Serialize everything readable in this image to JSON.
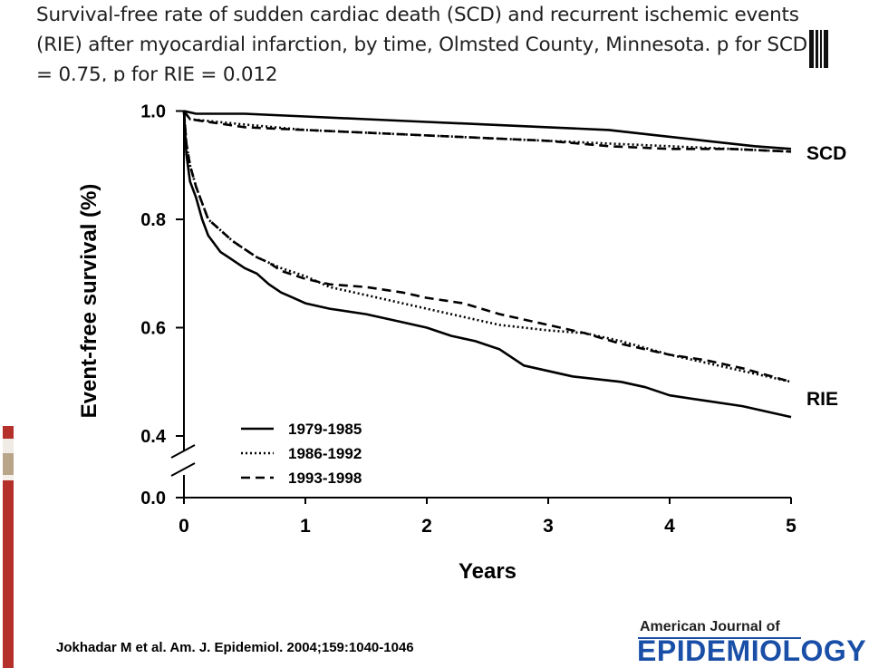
{
  "slide": {
    "title": "Survival-free rate of sudden cardiac death (SCD) and recurrent ischemic events (RIE) after myocardial infarction, by time, Olmsted County, Minnesota. p for SCD = 0.75, p for RIE = 0.012",
    "citation": "Jokhadar M et al. Am. J. Epidemiol. 2004;159:1040-1046",
    "journal_top": "American Journal of",
    "journal_bottom": "EPIDEMIOLOGY",
    "colors": {
      "journal_blue": "#1a4fa8",
      "strip_red": "#b5302a",
      "strip_tan": "#b8a58a"
    }
  },
  "chart_data": {
    "type": "line",
    "xlabel": "Years",
    "ylabel": "Event-free survival  (%)",
    "xlim": [
      0,
      5
    ],
    "ylim": [
      0.0,
      1.0
    ],
    "axis_break": "between 0.0 and 0.4",
    "xticks": [
      "0",
      "1",
      "2",
      "3",
      "4",
      "5"
    ],
    "yticks": [
      "0.0",
      "0.4",
      "0.6",
      "0.8",
      "1.0"
    ],
    "legend_position": "lower-left",
    "annotations": [
      "SCD",
      "RIE"
    ],
    "series": [
      {
        "name": "1979-1985",
        "group": "SCD",
        "dash": "solid",
        "x": [
          0,
          0.1,
          0.5,
          1.0,
          1.5,
          2.0,
          2.5,
          3.0,
          3.5,
          3.9,
          4.3,
          4.7,
          5.0
        ],
        "y": [
          1.0,
          0.995,
          0.995,
          0.99,
          0.985,
          0.98,
          0.975,
          0.97,
          0.965,
          0.955,
          0.945,
          0.935,
          0.93
        ]
      },
      {
        "name": "1986-1992",
        "group": "SCD",
        "dash": "dotted",
        "x": [
          0,
          0.05,
          0.5,
          1.0,
          1.5,
          2.0,
          2.5,
          3.0,
          3.5,
          4.0,
          4.5,
          5.0
        ],
        "y": [
          1.0,
          0.985,
          0.975,
          0.965,
          0.96,
          0.955,
          0.95,
          0.945,
          0.94,
          0.935,
          0.93,
          0.925
        ]
      },
      {
        "name": "1993-1998",
        "group": "SCD",
        "dash": "dashed",
        "x": [
          0,
          0.05,
          0.5,
          1.0,
          1.5,
          2.0,
          2.5,
          3.0,
          3.5,
          4.0,
          4.5,
          5.0
        ],
        "y": [
          1.0,
          0.985,
          0.97,
          0.965,
          0.96,
          0.955,
          0.95,
          0.945,
          0.935,
          0.93,
          0.93,
          0.925
        ]
      },
      {
        "name": "1979-1985",
        "group": "RIE",
        "dash": "solid",
        "x": [
          0,
          0.02,
          0.05,
          0.1,
          0.15,
          0.2,
          0.3,
          0.4,
          0.5,
          0.6,
          0.7,
          0.8,
          0.9,
          1.0,
          1.2,
          1.5,
          1.8,
          2.0,
          2.2,
          2.4,
          2.6,
          2.8,
          3.0,
          3.2,
          3.4,
          3.6,
          3.8,
          4.0,
          4.3,
          4.6,
          4.8,
          5.0
        ],
        "y": [
          1.0,
          0.92,
          0.87,
          0.84,
          0.8,
          0.77,
          0.74,
          0.725,
          0.71,
          0.7,
          0.68,
          0.665,
          0.655,
          0.645,
          0.635,
          0.625,
          0.61,
          0.6,
          0.585,
          0.575,
          0.56,
          0.53,
          0.52,
          0.51,
          0.505,
          0.5,
          0.49,
          0.475,
          0.465,
          0.455,
          0.445,
          0.435
        ]
      },
      {
        "name": "1986-1992",
        "group": "RIE",
        "dash": "dotted",
        "x": [
          0,
          0.02,
          0.05,
          0.1,
          0.15,
          0.2,
          0.3,
          0.4,
          0.5,
          0.6,
          0.7,
          0.8,
          1.0,
          1.2,
          1.5,
          1.8,
          2.0,
          2.3,
          2.6,
          3.0,
          3.3,
          3.6,
          4.0,
          4.3,
          4.6,
          5.0
        ],
        "y": [
          1.0,
          0.94,
          0.9,
          0.86,
          0.83,
          0.8,
          0.78,
          0.76,
          0.745,
          0.73,
          0.72,
          0.71,
          0.695,
          0.675,
          0.66,
          0.645,
          0.635,
          0.62,
          0.605,
          0.595,
          0.59,
          0.575,
          0.55,
          0.535,
          0.52,
          0.5
        ]
      },
      {
        "name": "1993-1998",
        "group": "RIE",
        "dash": "dashed",
        "x": [
          0,
          0.02,
          0.05,
          0.1,
          0.15,
          0.2,
          0.3,
          0.4,
          0.5,
          0.6,
          0.7,
          0.8,
          1.0,
          1.2,
          1.5,
          1.8,
          2.0,
          2.3,
          2.6,
          3.0,
          3.3,
          3.6,
          4.0,
          4.3,
          4.6,
          5.0
        ],
        "y": [
          1.0,
          0.94,
          0.9,
          0.86,
          0.83,
          0.8,
          0.78,
          0.76,
          0.745,
          0.73,
          0.72,
          0.705,
          0.69,
          0.68,
          0.675,
          0.665,
          0.655,
          0.645,
          0.625,
          0.605,
          0.59,
          0.57,
          0.55,
          0.54,
          0.525,
          0.5
        ]
      }
    ]
  }
}
